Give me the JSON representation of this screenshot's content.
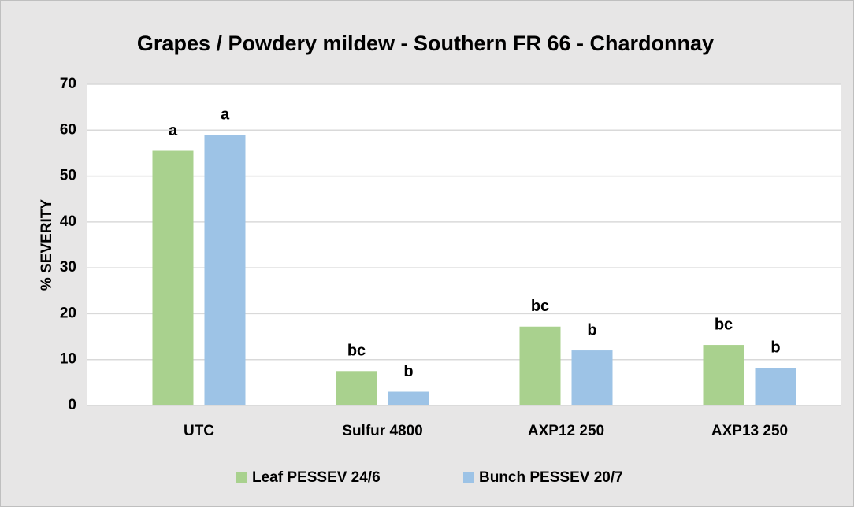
{
  "chart_data": {
    "type": "bar",
    "title": "Grapes / Powdery mildew - Southern FR 66 - Chardonnay",
    "y_label": "% SEVERITY",
    "categories": [
      "UTC",
      "Sulfur 4800",
      "AXP12 250",
      "AXP13 250"
    ],
    "series": [
      {
        "name": "Leaf PESSEV 24/6",
        "color": "#a9d18e",
        "values": [
          55.5,
          7.5,
          17.2,
          13.2
        ],
        "letters": [
          "a",
          "bc",
          "bc",
          "bc"
        ]
      },
      {
        "name": "Bunch PESSEV 20/7",
        "color": "#9dc3e6",
        "values": [
          59,
          3,
          12,
          8.2
        ],
        "letters": [
          "a",
          "b",
          "b",
          "b"
        ]
      }
    ],
    "ylim": [
      0,
      70
    ],
    "yticks": [
      0,
      10,
      20,
      30,
      40,
      50,
      60,
      70
    ],
    "grid": true,
    "legend": "bottom"
  }
}
